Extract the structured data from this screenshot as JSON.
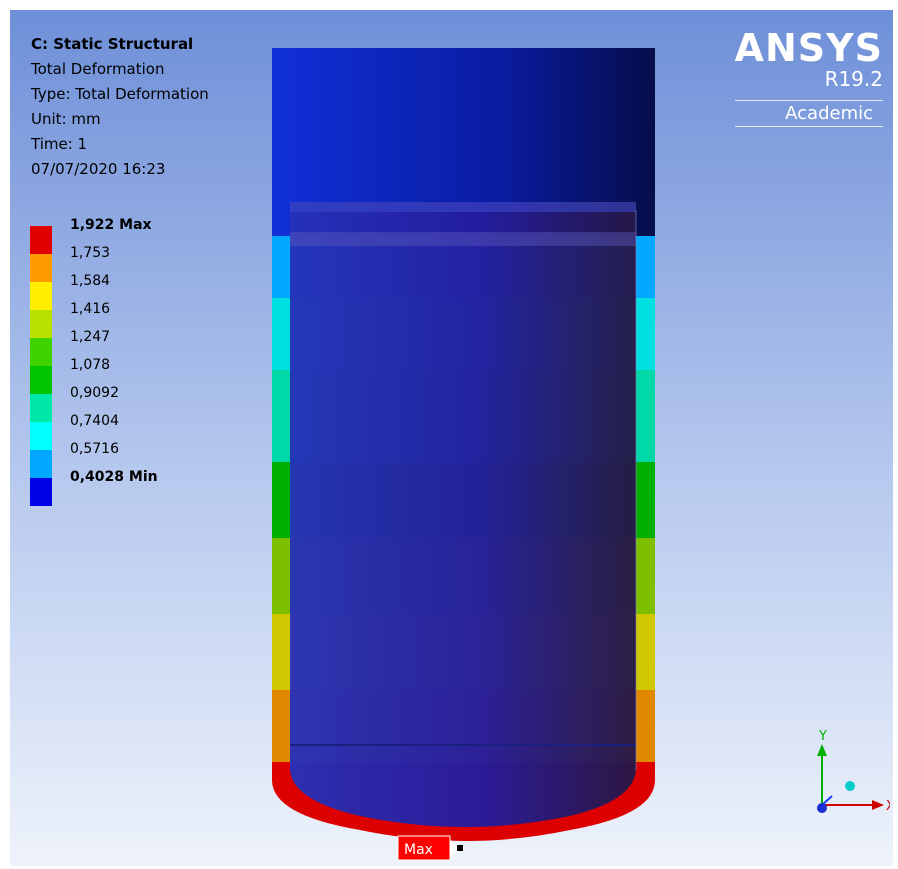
{
  "info": {
    "title": "C: Static Structural",
    "lines": [
      "Total Deformation",
      "Type: Total Deformation",
      "Unit: mm",
      "Time: 1",
      "07/07/2020 16:23"
    ]
  },
  "legend": [
    {
      "label": "1,922 Max",
      "color": "#e00000",
      "bold": true
    },
    {
      "label": "1,753",
      "color": "#ff9b00",
      "bold": false
    },
    {
      "label": "1,584",
      "color": "#ffee00",
      "bold": false
    },
    {
      "label": "1,416",
      "color": "#b8e100",
      "bold": false
    },
    {
      "label": "1,247",
      "color": "#3fd400",
      "bold": false
    },
    {
      "label": "1,078",
      "color": "#00c400",
      "bold": false
    },
    {
      "label": "0,9092",
      "color": "#00e8a8",
      "bold": false
    },
    {
      "label": "0,7404",
      "color": "#00ffff",
      "bold": false
    },
    {
      "label": "0,5716",
      "color": "#00a9ff",
      "bold": false
    },
    {
      "label": "0,4028 Min",
      "color": "#0000e6",
      "bold": true
    }
  ],
  "logo": {
    "brand": "ANSYS",
    "version": "R19.2",
    "edition": "Academic"
  },
  "probe": {
    "label": "Max"
  },
  "triad": {
    "y_label": "Y",
    "x_label": "X"
  }
}
